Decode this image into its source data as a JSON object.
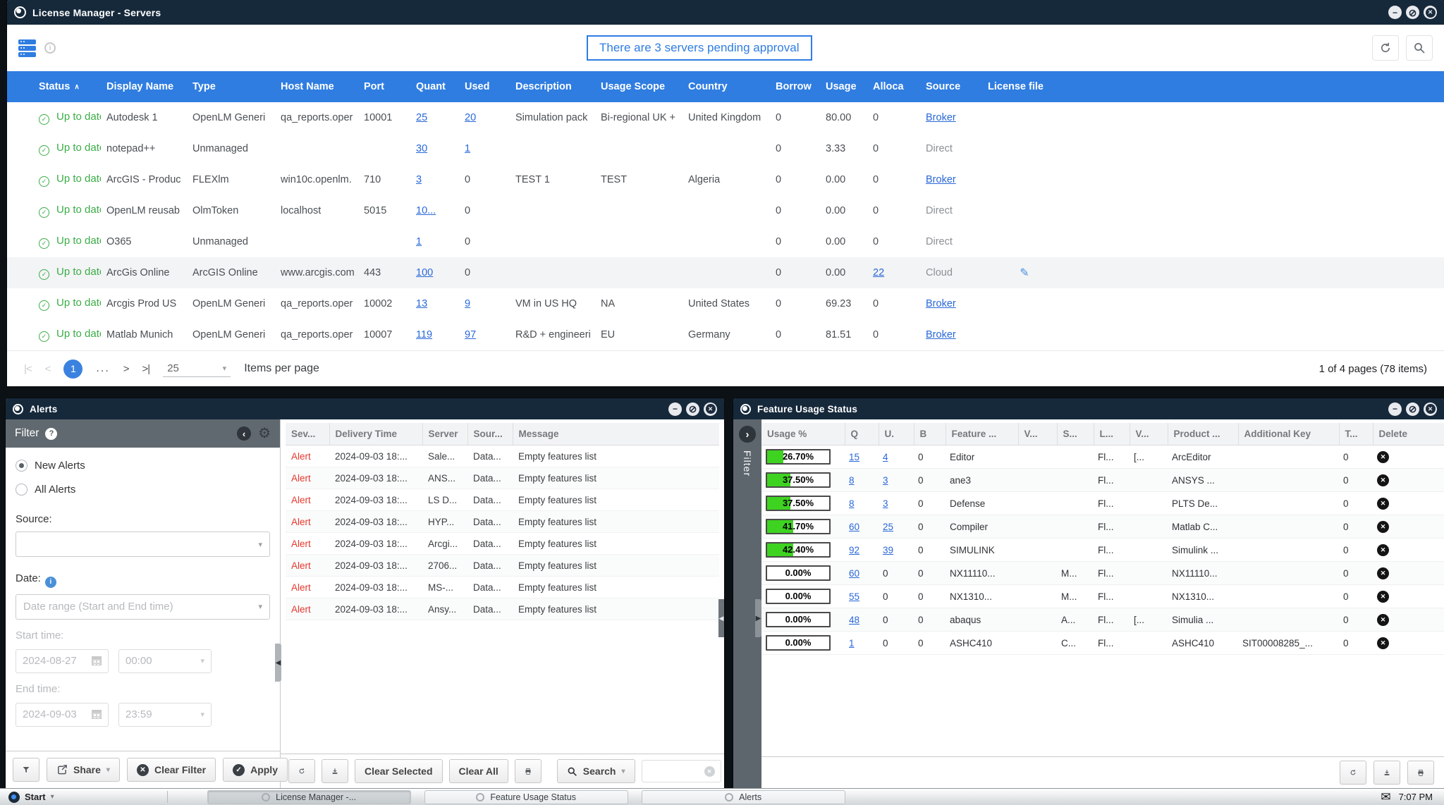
{
  "main_window": {
    "title": "License Manager - Servers",
    "banner": "There are 3 servers pending approval",
    "table": {
      "sort_column": "Status",
      "columns": [
        "Status",
        "Display Name",
        "Type",
        "Host Name",
        "Port",
        "Quant",
        "Used",
        "Description",
        "Usage Scope",
        "Country",
        "Borrow",
        "Usage",
        "Alloca",
        "Source",
        "License file"
      ],
      "rows": [
        {
          "status": "Up to date",
          "display_name": "Autodesk 1",
          "type": "OpenLM Generi",
          "host_name": "qa_reports.oper",
          "port": "10001",
          "quant": "25",
          "used": "20",
          "used_link": true,
          "description": "Simulation pack",
          "usage_scope": "Bi-regional UK +",
          "country": "United Kingdom",
          "borrow": "0",
          "usage": "80.00",
          "alloca": "0",
          "source": "Broker",
          "source_link": true
        },
        {
          "status": "Up to date",
          "display_name": "notepad++",
          "type": "Unmanaged",
          "host_name": "",
          "port": "",
          "quant": "30",
          "used": "1",
          "used_link": true,
          "description": "",
          "usage_scope": "",
          "country": "",
          "borrow": "0",
          "usage": "3.33",
          "alloca": "0",
          "source": "Direct"
        },
        {
          "status": "Up to date",
          "display_name": "ArcGIS - Produc",
          "type": "FLEXlm",
          "host_name": "win10c.openlm.",
          "port": "710",
          "quant": "3",
          "used": "0",
          "description": "TEST 1",
          "usage_scope": "TEST",
          "country": "Algeria",
          "borrow": "0",
          "usage": "0.00",
          "alloca": "0",
          "source": "Broker",
          "source_link": true
        },
        {
          "status": "Up to date",
          "display_name": "OpenLM reusab",
          "type": "OlmToken",
          "host_name": "localhost",
          "port": "5015",
          "quant": "10...",
          "used": "0",
          "description": "",
          "usage_scope": "",
          "country": "",
          "borrow": "0",
          "usage": "0.00",
          "alloca": "0",
          "source": "Direct"
        },
        {
          "status": "Up to date",
          "display_name": "O365",
          "type": "Unmanaged",
          "host_name": "",
          "port": "",
          "quant": "1",
          "used": "0",
          "description": "",
          "usage_scope": "",
          "country": "",
          "borrow": "0",
          "usage": "0.00",
          "alloca": "0",
          "source": "Direct"
        },
        {
          "status": "Up to date",
          "display_name": "ArcGis Online",
          "type": "ArcGIS Online",
          "host_name": "www.arcgis.com",
          "port": "443",
          "quant": "100",
          "used": "0",
          "description": "",
          "usage_scope": "",
          "country": "",
          "borrow": "0",
          "usage": "0.00",
          "alloca": "22",
          "alloca_link": true,
          "source": "Cloud",
          "edit_icon": true,
          "highlight": true
        },
        {
          "status": "Up to date",
          "display_name": "Arcgis Prod US",
          "type": "OpenLM Generi",
          "host_name": "qa_reports.oper",
          "port": "10002",
          "quant": "13",
          "used": "9",
          "used_link": true,
          "description": "VM in US HQ",
          "usage_scope": "NA",
          "country": "United States",
          "borrow": "0",
          "usage": "69.23",
          "alloca": "0",
          "source": "Broker",
          "source_link": true
        },
        {
          "status": "Up to date",
          "display_name": "Matlab Munich",
          "type": "OpenLM Generi",
          "host_name": "qa_reports.oper",
          "port": "10007",
          "quant": "119",
          "used": "97",
          "used_link": true,
          "description": "R&D + engineeri",
          "usage_scope": "EU",
          "country": "Germany",
          "borrow": "0",
          "usage": "81.51",
          "alloca": "0",
          "source": "Broker",
          "source_link": true
        }
      ]
    },
    "pagination": {
      "page": "1",
      "ellipsis": "...",
      "page_size": "25",
      "items_per_page_label": "Items per page",
      "summary": "1 of 4 pages (78 items)"
    }
  },
  "alerts_window": {
    "title": "Alerts",
    "filter": {
      "header": "Filter",
      "radio_new": "New Alerts",
      "radio_all": "All Alerts",
      "selected_radio": "New Alerts",
      "source_label": "Source:",
      "date_label": "Date:",
      "date_range_value": "Date range (Start and End time)",
      "start_time_label": "Start time:",
      "start_date": "2024-08-27",
      "start_time": "00:00",
      "end_time_label": "End time:",
      "end_date": "2024-09-03",
      "end_time": "23:59",
      "share_label": "Share",
      "clear_filter_label": "Clear Filter",
      "apply_label": "Apply"
    },
    "table": {
      "columns": [
        "Sev...",
        "Delivery Time",
        "Server",
        "Sour...",
        "Message"
      ],
      "rows": [
        {
          "severity": "Alert",
          "delivery_time": "2024-09-03 18:...",
          "server": "Sale...",
          "source": "Data...",
          "message": "Empty features list"
        },
        {
          "severity": "Alert",
          "delivery_time": "2024-09-03 18:...",
          "server": "ANS...",
          "source": "Data...",
          "message": "Empty features list"
        },
        {
          "severity": "Alert",
          "delivery_time": "2024-09-03 18:...",
          "server": "LS D...",
          "source": "Data...",
          "message": "Empty features list"
        },
        {
          "severity": "Alert",
          "delivery_time": "2024-09-03 18:...",
          "server": "HYP...",
          "source": "Data...",
          "message": "Empty features list"
        },
        {
          "severity": "Alert",
          "delivery_time": "2024-09-03 18:...",
          "server": "Arcgi...",
          "source": "Data...",
          "message": "Empty features list"
        },
        {
          "severity": "Alert",
          "delivery_time": "2024-09-03 18:...",
          "server": "2706...",
          "source": "Data...",
          "message": "Empty features list"
        },
        {
          "severity": "Alert",
          "delivery_time": "2024-09-03 18:...",
          "server": "MS-...",
          "source": "Data...",
          "message": "Empty features list"
        },
        {
          "severity": "Alert",
          "delivery_time": "2024-09-03 18:...",
          "server": "Ansy...",
          "source": "Data...",
          "message": "Empty features list"
        }
      ]
    },
    "toolbar": {
      "clear_selected": "Clear Selected",
      "clear_all": "Clear All",
      "search_label": "Search",
      "search_value": ""
    }
  },
  "feature_window": {
    "title": "Feature Usage Status",
    "filter_strip_label": "Filter",
    "table": {
      "columns": [
        "Usage %",
        "Q",
        "U.",
        "B",
        "Feature ...",
        "V...",
        "S...",
        "L...",
        "V...",
        "Product ...",
        "Additional Key",
        "T...",
        "Delete"
      ],
      "rows": [
        {
          "usage": "26.70%",
          "pct": 26.7,
          "q": "15",
          "u": "4",
          "u_link": true,
          "b": "0",
          "feature": "Editor",
          "v1": "",
          "s": "",
          "l": "Fl...",
          "v2": "[...",
          "product": "ArcEditor",
          "additional_key": "",
          "t": "0"
        },
        {
          "usage": "37.50%",
          "pct": 37.5,
          "q": "8",
          "u": "3",
          "u_link": true,
          "b": "0",
          "feature": "ane3",
          "v1": "",
          "s": "",
          "l": "Fl...",
          "v2": "",
          "product": "ANSYS ...",
          "additional_key": "",
          "t": "0"
        },
        {
          "usage": "37.50%",
          "pct": 37.5,
          "q": "8",
          "u": "3",
          "u_link": true,
          "b": "0",
          "feature": "Defense",
          "v1": "",
          "s": "",
          "l": "Fl...",
          "v2": "",
          "product": "PLTS De...",
          "additional_key": "",
          "t": "0"
        },
        {
          "usage": "41.70%",
          "pct": 41.7,
          "q": "60",
          "u": "25",
          "u_link": true,
          "b": "0",
          "feature": "Compiler",
          "v1": "",
          "s": "",
          "l": "Fl...",
          "v2": "",
          "product": "Matlab C...",
          "additional_key": "",
          "t": "0"
        },
        {
          "usage": "42.40%",
          "pct": 42.4,
          "q": "92",
          "u": "39",
          "u_link": true,
          "b": "0",
          "feature": "SIMULINK",
          "v1": "",
          "s": "",
          "l": "Fl...",
          "v2": "",
          "product": "Simulink ...",
          "additional_key": "",
          "t": "0"
        },
        {
          "usage": "0.00%",
          "pct": 0,
          "q": "60",
          "u": "0",
          "b": "0",
          "feature": "NX11110...",
          "v1": "",
          "s": "M...",
          "l": "Fl...",
          "v2": "",
          "product": "NX11110...",
          "additional_key": "",
          "t": "0"
        },
        {
          "usage": "0.00%",
          "pct": 0,
          "q": "55",
          "u": "0",
          "b": "0",
          "feature": "NX1310...",
          "v1": "",
          "s": "M...",
          "l": "Fl...",
          "v2": "",
          "product": "NX1310...",
          "additional_key": "",
          "t": "0"
        },
        {
          "usage": "0.00%",
          "pct": 0,
          "q": "48",
          "u": "0",
          "b": "0",
          "feature": "abaqus",
          "v1": "",
          "s": "A...",
          "l": "Fl...",
          "v2": "[...",
          "product": "Simulia ...",
          "additional_key": "",
          "t": "0"
        },
        {
          "usage": "0.00%",
          "pct": 0,
          "q": "1",
          "u": "0",
          "b": "0",
          "feature": "ASHC410",
          "v1": "",
          "s": "C...",
          "l": "Fl...",
          "v2": "",
          "product": "ASHC410",
          "additional_key": "SIT00008285_...",
          "t": "0"
        }
      ]
    }
  },
  "taskbar": {
    "start_label": "Start",
    "buttons": [
      "License Manager -...",
      "Feature Usage Status",
      "Alerts"
    ],
    "active_button": 0,
    "clock": "7:07 PM"
  },
  "colors": {
    "accent_blue": "#2f7de1",
    "titlebar": "#16293b",
    "status_green": "#3aad46",
    "alert_red": "#e6382d",
    "link_blue": "#2968d8",
    "usage_bar_green": "#3ed321"
  }
}
